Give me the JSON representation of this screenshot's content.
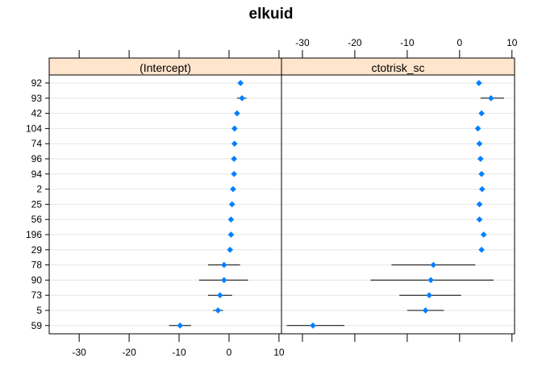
{
  "chart_data": {
    "type": "dotplot",
    "title": "elkuid",
    "groups": [
      "92",
      "93",
      "42",
      "104",
      "74",
      "96",
      "94",
      "2",
      "25",
      "56",
      "196",
      "29",
      "78",
      "90",
      "73",
      "5",
      "59"
    ],
    "colors": {
      "point": "#0080ff",
      "strip": "#ffe5cc",
      "grid": "#e6e6e6",
      "interval": "#000000"
    },
    "grid": true,
    "panels": [
      {
        "name": "(Intercept)",
        "xlim": [
          -36,
          10.5
        ],
        "ticks": [
          -30,
          -20,
          -10,
          0,
          10
        ],
        "tick_side": "bottom",
        "points": [
          {
            "group": "92",
            "value": 2.3,
            "lower": 2.3,
            "upper": 2.3
          },
          {
            "group": "93",
            "value": 2.6,
            "lower": 1.6,
            "upper": 3.5
          },
          {
            "group": "42",
            "value": 1.6,
            "lower": 1.6,
            "upper": 1.6
          },
          {
            "group": "104",
            "value": 1.1,
            "lower": 1.1,
            "upper": 1.1
          },
          {
            "group": "74",
            "value": 1.1,
            "lower": 1.1,
            "upper": 1.1
          },
          {
            "group": "96",
            "value": 1.0,
            "lower": 1.0,
            "upper": 1.0
          },
          {
            "group": "94",
            "value": 1.0,
            "lower": 1.0,
            "upper": 1.0
          },
          {
            "group": "2",
            "value": 0.8,
            "lower": 0.8,
            "upper": 0.8
          },
          {
            "group": "25",
            "value": 0.6,
            "lower": 0.6,
            "upper": 0.6
          },
          {
            "group": "56",
            "value": 0.4,
            "lower": 0.4,
            "upper": 0.4
          },
          {
            "group": "196",
            "value": 0.4,
            "lower": 0.4,
            "upper": 0.4
          },
          {
            "group": "29",
            "value": 0.2,
            "lower": 0.2,
            "upper": 0.2
          },
          {
            "group": "78",
            "value": -1.0,
            "lower": -4.2,
            "upper": 2.2
          },
          {
            "group": "90",
            "value": -1.0,
            "lower": -6.0,
            "upper": 3.8
          },
          {
            "group": "73",
            "value": -1.8,
            "lower": -4.2,
            "upper": 0.6
          },
          {
            "group": "5",
            "value": -2.2,
            "lower": -3.2,
            "upper": -1.2
          },
          {
            "group": "59",
            "value": -9.8,
            "lower": -12.0,
            "upper": -7.6
          }
        ]
      },
      {
        "name": "ctotrisk_sc",
        "xlim": [
          -34,
          10.5
        ],
        "ticks": [
          -30,
          -20,
          -10,
          0,
          10
        ],
        "tick_side": "top",
        "points": [
          {
            "group": "92",
            "value": 3.7,
            "lower": 3.7,
            "upper": 3.7
          },
          {
            "group": "93",
            "value": 6.0,
            "lower": 4.0,
            "upper": 8.5
          },
          {
            "group": "42",
            "value": 4.2,
            "lower": 4.2,
            "upper": 4.2
          },
          {
            "group": "104",
            "value": 3.5,
            "lower": 3.5,
            "upper": 3.5
          },
          {
            "group": "74",
            "value": 3.8,
            "lower": 3.8,
            "upper": 3.8
          },
          {
            "group": "96",
            "value": 4.0,
            "lower": 4.0,
            "upper": 4.0
          },
          {
            "group": "94",
            "value": 4.2,
            "lower": 4.2,
            "upper": 4.2
          },
          {
            "group": "2",
            "value": 4.3,
            "lower": 4.3,
            "upper": 4.3
          },
          {
            "group": "25",
            "value": 3.8,
            "lower": 3.8,
            "upper": 3.8
          },
          {
            "group": "56",
            "value": 3.8,
            "lower": 3.8,
            "upper": 3.8
          },
          {
            "group": "196",
            "value": 4.6,
            "lower": 4.6,
            "upper": 4.6
          },
          {
            "group": "29",
            "value": 4.2,
            "lower": 4.2,
            "upper": 4.2
          },
          {
            "group": "78",
            "value": -5.0,
            "lower": -13.0,
            "upper": 3.0
          },
          {
            "group": "90",
            "value": -5.5,
            "lower": -17.0,
            "upper": 6.5
          },
          {
            "group": "73",
            "value": -5.8,
            "lower": -11.5,
            "upper": 0.3
          },
          {
            "group": "5",
            "value": -6.5,
            "lower": -10.0,
            "upper": -3.0
          },
          {
            "group": "59",
            "value": -28.0,
            "lower": -33.0,
            "upper": -22.0
          }
        ]
      }
    ]
  }
}
